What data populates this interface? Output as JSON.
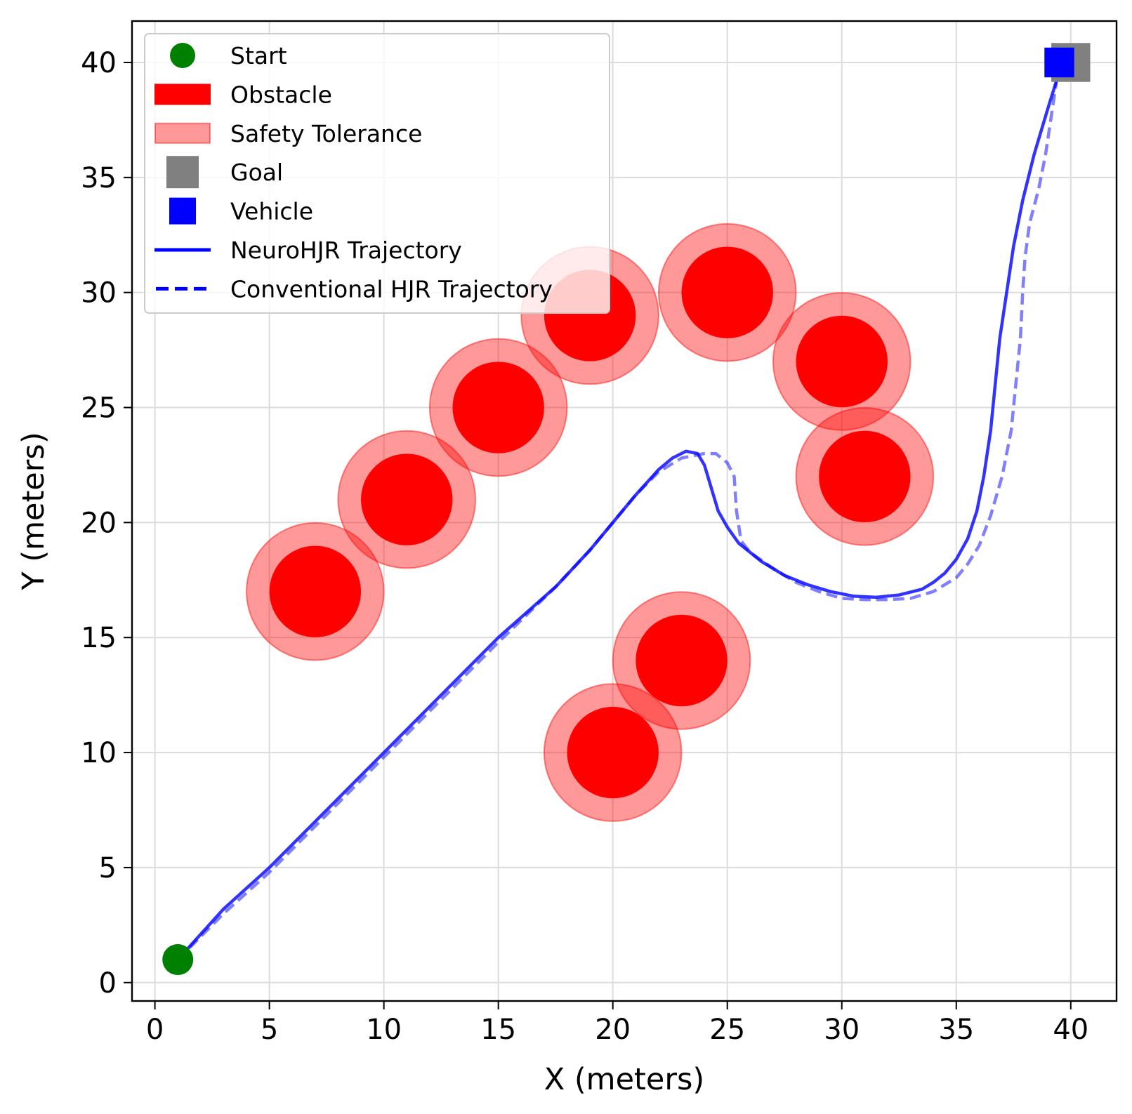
{
  "chart_data": {
    "type": "scatter",
    "xlabel": "X (meters)",
    "ylabel": "Y (meters)",
    "xlim": [
      -1,
      42
    ],
    "ylim": [
      -0.8,
      41.8
    ],
    "xticks": [
      0,
      5,
      10,
      15,
      20,
      25,
      30,
      35,
      40
    ],
    "yticks": [
      0,
      5,
      10,
      15,
      20,
      25,
      30,
      35,
      40
    ],
    "grid": true,
    "legend_position": "top-left",
    "colors": {
      "start": "#008000",
      "obstacle": "#ff0000",
      "safety": "#ff0000",
      "goal": "#808080",
      "vehicle": "#0000ff",
      "trajectory": "#0000ff"
    },
    "legend": [
      {
        "label": "Start",
        "kind": "start"
      },
      {
        "label": "Obstacle",
        "kind": "obstacle"
      },
      {
        "label": "Safety Tolerance",
        "kind": "safety"
      },
      {
        "label": "Goal",
        "kind": "goal"
      },
      {
        "label": "Vehicle",
        "kind": "vehicle"
      },
      {
        "label": "NeuroHJR Trajectory",
        "kind": "solid"
      },
      {
        "label": "Conventional HJR Trajectory",
        "kind": "dashed"
      }
    ],
    "start": {
      "x": 1,
      "y": 1
    },
    "goal": {
      "x": 40,
      "y": 40,
      "size": 1.7
    },
    "vehicle": {
      "x": 39.5,
      "y": 40,
      "size": 1.3
    },
    "obstacles": [
      {
        "x": 7,
        "y": 17,
        "r": 2,
        "safety_r": 3
      },
      {
        "x": 11,
        "y": 21,
        "r": 2,
        "safety_r": 3
      },
      {
        "x": 15,
        "y": 25,
        "r": 2,
        "safety_r": 3
      },
      {
        "x": 19,
        "y": 29,
        "r": 2,
        "safety_r": 3
      },
      {
        "x": 25,
        "y": 30,
        "r": 2,
        "safety_r": 3
      },
      {
        "x": 30,
        "y": 27,
        "r": 2,
        "safety_r": 3
      },
      {
        "x": 31,
        "y": 22,
        "r": 2,
        "safety_r": 3
      },
      {
        "x": 23,
        "y": 14,
        "r": 2,
        "safety_r": 3
      },
      {
        "x": 20,
        "y": 10,
        "r": 2,
        "safety_r": 3
      }
    ],
    "series": [
      {
        "name": "NeuroHJR Trajectory",
        "style": "solid",
        "points": [
          [
            1,
            1
          ],
          [
            3,
            3.2
          ],
          [
            5,
            5
          ],
          [
            10,
            10
          ],
          [
            15,
            15
          ],
          [
            17.5,
            17.2
          ],
          [
            19,
            18.8
          ],
          [
            20,
            20
          ],
          [
            21,
            21.2
          ],
          [
            22,
            22.3
          ],
          [
            22.6,
            22.8
          ],
          [
            23.2,
            23.1
          ],
          [
            23.7,
            23
          ],
          [
            24,
            22.5
          ],
          [
            24.3,
            21.5
          ],
          [
            24.6,
            20.5
          ],
          [
            25,
            19.8
          ],
          [
            25.5,
            19.1
          ],
          [
            26.5,
            18.3
          ],
          [
            27.5,
            17.7
          ],
          [
            28.5,
            17.3
          ],
          [
            29.5,
            17
          ],
          [
            30.5,
            16.8
          ],
          [
            31.5,
            16.75
          ],
          [
            32.5,
            16.85
          ],
          [
            33.5,
            17.1
          ],
          [
            34,
            17.4
          ],
          [
            34.5,
            17.8
          ],
          [
            35,
            18.4
          ],
          [
            35.5,
            19.3
          ],
          [
            35.9,
            20.5
          ],
          [
            36.2,
            22
          ],
          [
            36.5,
            24
          ],
          [
            36.7,
            26
          ],
          [
            36.9,
            28
          ],
          [
            37.2,
            30
          ],
          [
            37.5,
            32
          ],
          [
            37.9,
            34
          ],
          [
            38.4,
            36
          ],
          [
            39,
            38
          ],
          [
            39.5,
            39.6
          ]
        ]
      },
      {
        "name": "Conventional HJR Trajectory",
        "style": "dashed",
        "points": [
          [
            1,
            1
          ],
          [
            3,
            3
          ],
          [
            5,
            4.8
          ],
          [
            10,
            9.8
          ],
          [
            15,
            14.8
          ],
          [
            17.5,
            17.2
          ],
          [
            19,
            18.8
          ],
          [
            20,
            20
          ],
          [
            21,
            21.2
          ],
          [
            22,
            22.2
          ],
          [
            23,
            22.8
          ],
          [
            24,
            23
          ],
          [
            24.5,
            23
          ],
          [
            25,
            22.6
          ],
          [
            25.3,
            22
          ],
          [
            25.4,
            20.5
          ],
          [
            25.6,
            19.2
          ],
          [
            26,
            18.7
          ],
          [
            27,
            18
          ],
          [
            28,
            17.4
          ],
          [
            29,
            17
          ],
          [
            30,
            16.7
          ],
          [
            31,
            16.65
          ],
          [
            32,
            16.65
          ],
          [
            33,
            16.7
          ],
          [
            34,
            17
          ],
          [
            35,
            17.6
          ],
          [
            35.5,
            18.2
          ],
          [
            36,
            19
          ],
          [
            36.5,
            20.3
          ],
          [
            37,
            22
          ],
          [
            37.4,
            24
          ],
          [
            37.6,
            26
          ],
          [
            37.8,
            28
          ],
          [
            37.9,
            30
          ],
          [
            38,
            31.5
          ],
          [
            38.2,
            33
          ],
          [
            38.6,
            34.5
          ],
          [
            38.9,
            36
          ],
          [
            39.2,
            38
          ],
          [
            39.5,
            40
          ]
        ]
      }
    ]
  }
}
